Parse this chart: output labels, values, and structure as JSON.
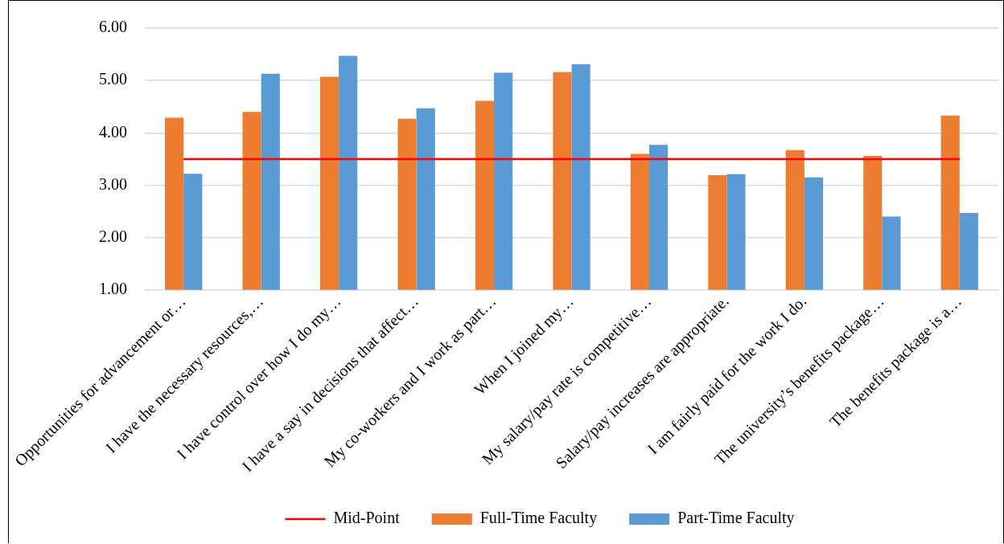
{
  "chart_data": {
    "type": "bar",
    "categories": [
      "Opportunities for advancement or…",
      "I have the necessary resources,…",
      "I have control over how I do my…",
      "I have a say in decisions that affect…",
      "My co-workers and I work as part…",
      "When I joined my…",
      "My salary/pay rate is competitive…",
      "Salary/pay increases are appropriate.",
      "I am fairly paid for the work I do.",
      "The university’s benefits package…",
      "The benefits package is a…"
    ],
    "series": [
      {
        "name": "Full-Time Faculty",
        "color": "#ed7d31",
        "values": [
          4.29,
          4.4,
          5.07,
          4.27,
          4.61,
          5.16,
          3.6,
          3.19,
          3.67,
          3.56,
          4.33
        ]
      },
      {
        "name": "Part-Time Faculty",
        "color": "#5b9bd5",
        "values": [
          3.22,
          5.13,
          5.47,
          4.47,
          5.15,
          5.31,
          3.77,
          3.21,
          3.15,
          2.4,
          2.47
        ]
      },
      {
        "name": "Mid-Point",
        "type": "line",
        "color": "#ff0000",
        "values": [
          3.5,
          3.5,
          3.5,
          3.5,
          3.5,
          3.5,
          3.5,
          3.5,
          3.5,
          3.5,
          3.5
        ]
      }
    ],
    "ylim": [
      1,
      6
    ],
    "yticks": [
      {
        "value": 1,
        "label": "1.00"
      },
      {
        "value": 2,
        "label": "2.00"
      },
      {
        "value": 3,
        "label": "3.00"
      },
      {
        "value": 4,
        "label": "4.00"
      },
      {
        "value": 5,
        "label": "5.00"
      },
      {
        "value": 6,
        "label": "6.00"
      }
    ],
    "grid": "y",
    "legend": "bottom",
    "marker": "none"
  }
}
